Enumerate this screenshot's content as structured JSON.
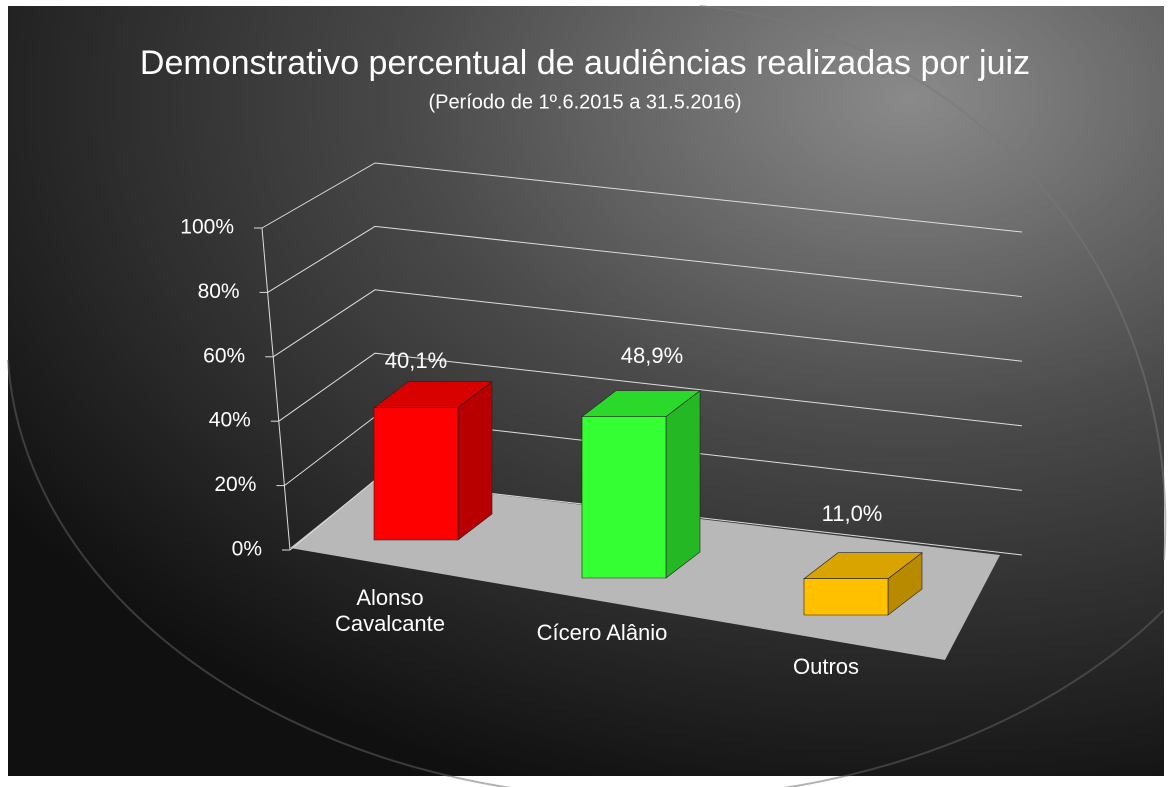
{
  "chart_data": {
    "type": "bar3d",
    "title": "Demonstrativo percentual de audiências realizadas por juiz",
    "subtitle": "(Período de 1º.6.2015  a  31.5.2016)",
    "categories": [
      "Alonso Cavalcante",
      "Cícero Alânio",
      "Outros"
    ],
    "values": [
      40.1,
      48.9,
      11.0
    ],
    "value_labels": [
      "40,1%",
      "48,9%",
      "11,0%"
    ],
    "colors": [
      "#ff0000",
      "#33ff33",
      "#ffc000"
    ],
    "ylim": [
      0,
      100
    ],
    "yticks": [
      {
        "value": 0,
        "label": "0%"
      },
      {
        "value": 20,
        "label": "20%"
      },
      {
        "value": 40,
        "label": "40%"
      },
      {
        "value": 60,
        "label": "60%"
      },
      {
        "value": 80,
        "label": "80%"
      },
      {
        "value": 100,
        "label": "100%"
      }
    ],
    "grid": true
  }
}
